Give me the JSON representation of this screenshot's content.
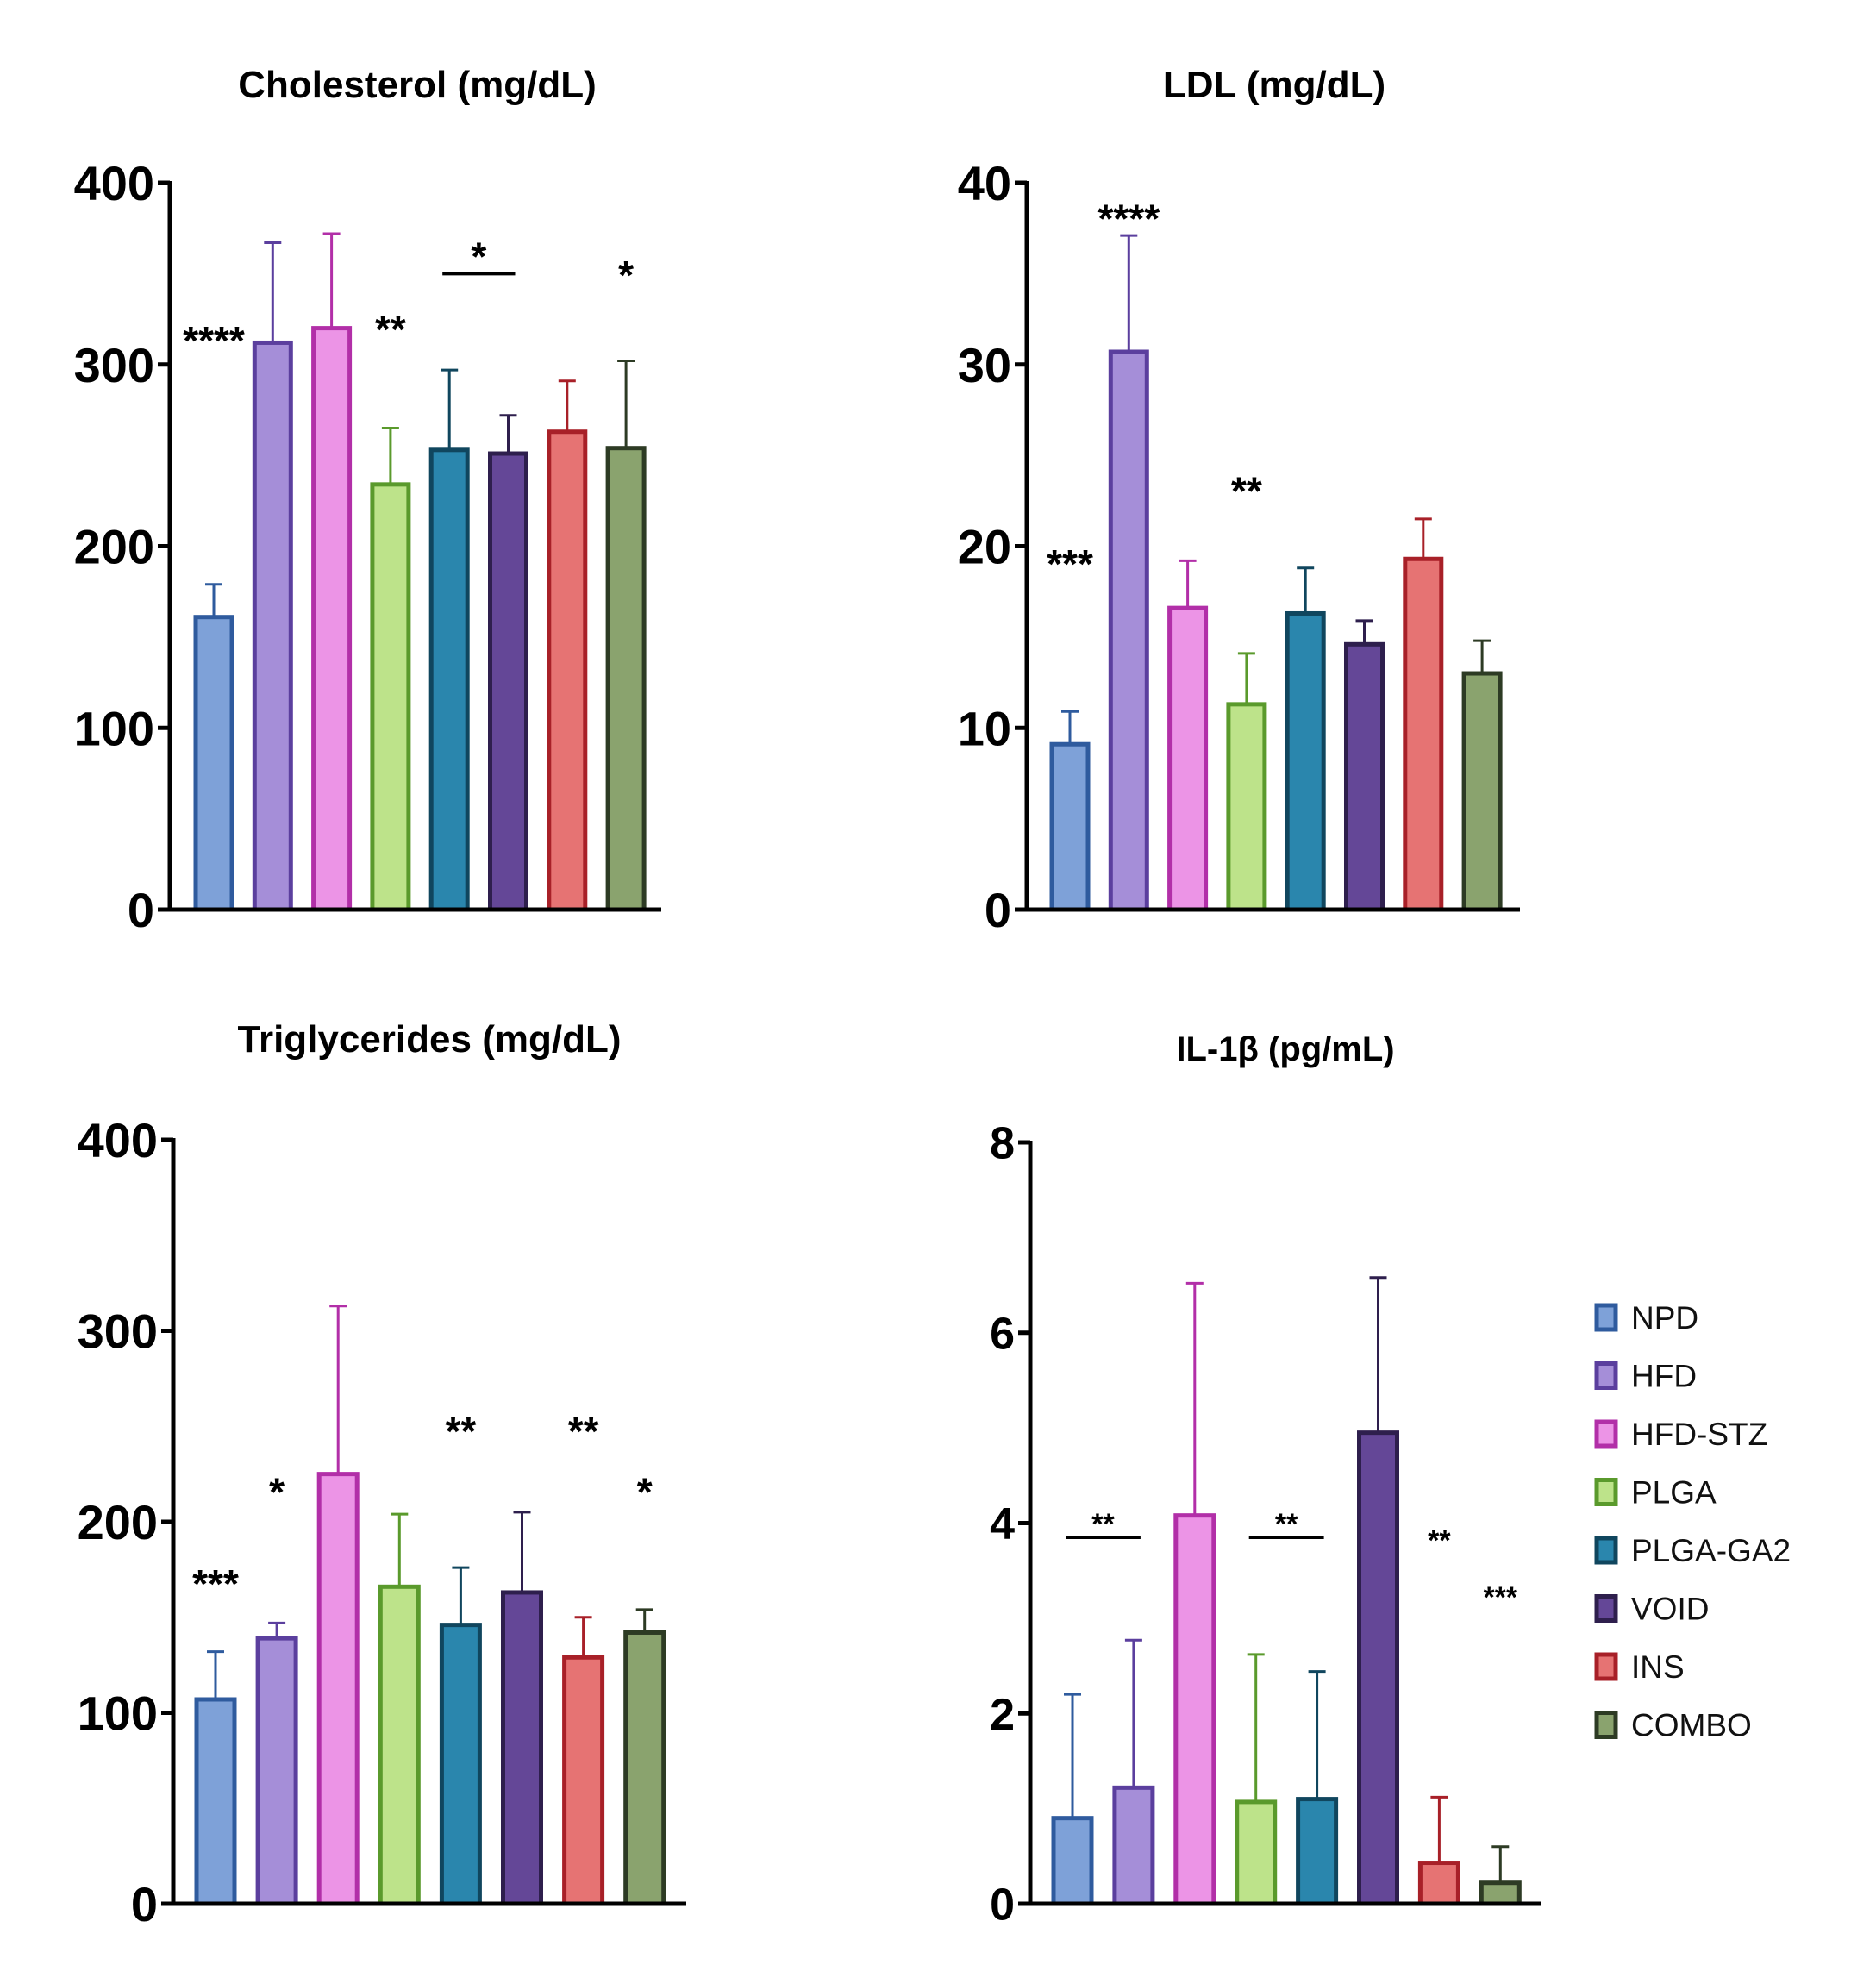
{
  "groups": [
    {
      "name": "NPD",
      "fill": "#7ea1d8",
      "stroke": "#2f5b9e"
    },
    {
      "name": "HFD",
      "fill": "#a58ed8",
      "stroke": "#5b3f9e"
    },
    {
      "name": "HFD-STZ",
      "fill": "#ec94e6",
      "stroke": "#b22fa8"
    },
    {
      "name": "PLGA",
      "fill": "#bde38a",
      "stroke": "#5a9a2c"
    },
    {
      "name": "PLGA-GA2",
      "fill": "#2a86ad",
      "stroke": "#10465e"
    },
    {
      "name": "VOID",
      "fill": "#644797",
      "stroke": "#2e1f4d"
    },
    {
      "name": "INS",
      "fill": "#e67373",
      "stroke": "#a82028"
    },
    {
      "name": "COMBO",
      "fill": "#8aa36e",
      "stroke": "#2d3b24"
    }
  ],
  "chart_data": [
    {
      "type": "bar",
      "title": "Cholesterol (mg/dL)",
      "categories": [
        "NPD",
        "HFD",
        "HFD-STZ",
        "PLGA",
        "PLGA-GA2",
        "VOID",
        "INS",
        "COMBO"
      ],
      "values": [
        161,
        312,
        320,
        234,
        253,
        251,
        263,
        254
      ],
      "error_upper": [
        179,
        367,
        372,
        265,
        297,
        272,
        291,
        302
      ],
      "ylim": [
        0,
        400
      ],
      "yticks": [
        "0",
        "100",
        "200",
        "300",
        "400"
      ],
      "xlabel": "",
      "ylabel": "",
      "annotations": [
        {
          "text": "****",
          "bar": 0,
          "bracket": false,
          "level": 318
        },
        {
          "text": "**",
          "bar": 3,
          "bracket": false,
          "level": 324
        },
        {
          "text": "*",
          "bar": 4,
          "bar_to": 5,
          "bracket": true,
          "level": 350
        },
        {
          "text": "*",
          "bar": 7,
          "bracket": false,
          "level": 354
        }
      ]
    },
    {
      "type": "bar",
      "title": "LDL (mg/dL)",
      "categories": [
        "NPD",
        "HFD",
        "HFD-STZ",
        "PLGA",
        "PLGA-GA2",
        "VOID",
        "INS",
        "COMBO"
      ],
      "values": [
        9.1,
        30.7,
        16.6,
        11.3,
        16.3,
        14.6,
        19.3,
        13.0
      ],
      "error_upper": [
        10.9,
        37.1,
        19.2,
        14.1,
        18.8,
        15.9,
        21.5,
        14.8
      ],
      "ylim": [
        0,
        40
      ],
      "yticks": [
        "0",
        "10",
        "20",
        "30",
        "40"
      ],
      "xlabel": "",
      "ylabel": "",
      "annotations": [
        {
          "text": "***",
          "bar": 0,
          "bracket": false,
          "level": 19.5
        },
        {
          "text": "****",
          "bar": 1,
          "bracket": false,
          "level": 38.5
        },
        {
          "text": "**",
          "bar": 3,
          "bracket": false,
          "level": 23.5
        }
      ]
    },
    {
      "type": "bar",
      "title": "Triglycerides (mg/dL)",
      "categories": [
        "NPD",
        "HFD",
        "HFD-STZ",
        "PLGA",
        "PLGA-GA2",
        "VOID",
        "INS",
        "COMBO"
      ],
      "values": [
        107,
        139,
        225,
        166,
        146,
        163,
        129,
        142
      ],
      "error_upper": [
        132,
        147,
        313,
        204,
        176,
        205,
        150,
        154
      ],
      "ylim": [
        0,
        400
      ],
      "yticks": [
        "0",
        "100",
        "200",
        "300",
        "400"
      ],
      "xlabel": "",
      "ylabel": "",
      "annotations": [
        {
          "text": "***",
          "bar": 0,
          "bracket": false,
          "level": 172
        },
        {
          "text": "*",
          "bar": 1,
          "bracket": false,
          "level": 220
        },
        {
          "text": "**",
          "bar": 4,
          "bracket": false,
          "level": 252
        },
        {
          "text": "**",
          "bar": 6,
          "bracket": false,
          "level": 252
        },
        {
          "text": "*",
          "bar": 7,
          "bracket": false,
          "level": 220
        }
      ]
    },
    {
      "type": "bar",
      "title": "IL-1β (pg/mL)",
      "categories": [
        "NPD",
        "HFD",
        "HFD-STZ",
        "PLGA",
        "PLGA-GA2",
        "VOID",
        "INS",
        "COMBO"
      ],
      "values": [
        0.9,
        1.22,
        4.08,
        1.07,
        1.1,
        4.95,
        0.43,
        0.22
      ],
      "error_upper": [
        2.2,
        2.77,
        6.52,
        2.62,
        2.44,
        6.58,
        1.12,
        0.6
      ],
      "ylim": [
        0,
        8
      ],
      "yticks": [
        "0",
        "2",
        "4",
        "6",
        "8"
      ],
      "xlabel": "",
      "ylabel": "",
      "annotations": [
        {
          "text": "**",
          "bar": 0,
          "bar_to": 1,
          "bracket": true,
          "level": 3.85
        },
        {
          "text": "**",
          "bar": 3,
          "bar_to": 4,
          "bracket": true,
          "level": 3.85
        },
        {
          "text": "**",
          "bar": 6,
          "bracket": false,
          "level": 3.95
        },
        {
          "text": "***",
          "bar": 7,
          "bracket": false,
          "level": 3.35
        }
      ]
    }
  ]
}
